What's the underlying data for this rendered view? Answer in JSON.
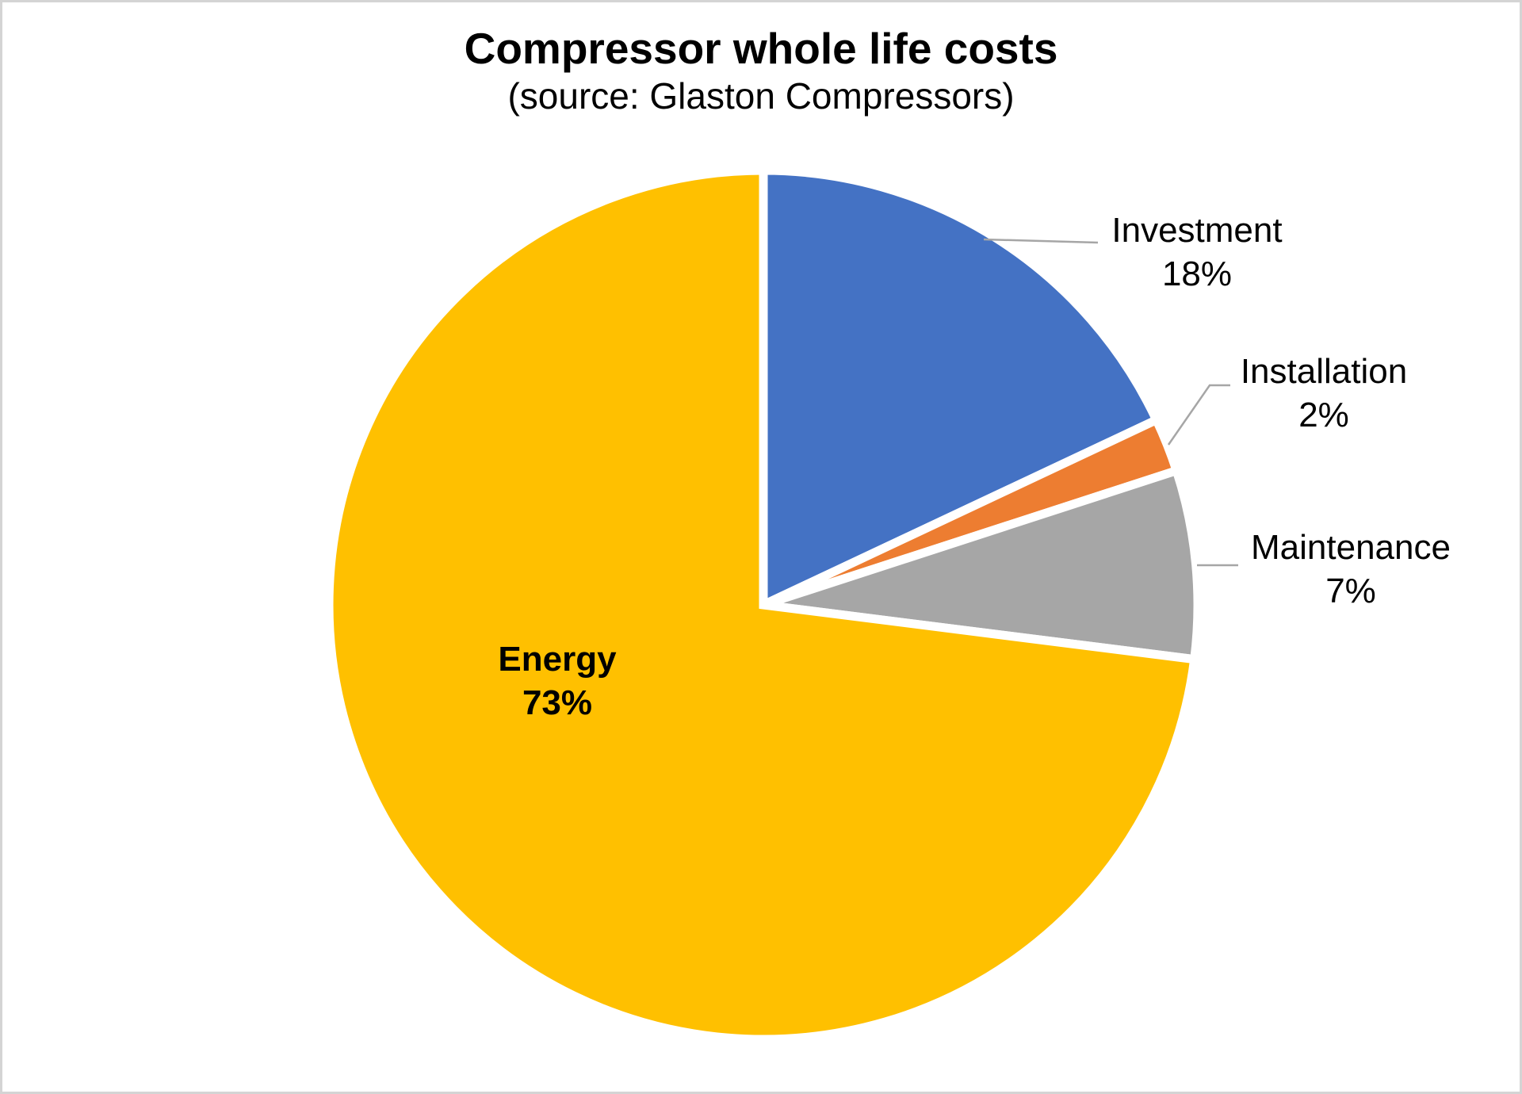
{
  "header": {
    "title": "Compressor whole life costs",
    "subtitle": "(source: Glaston Compressors)"
  },
  "chart_data": {
    "type": "pie",
    "title": "Compressor whole life costs",
    "subtitle": "(source: Glaston Compressors)",
    "start_angle_deg": 0,
    "direction": "clockwise",
    "slices": [
      {
        "label": "Investment",
        "value": 18,
        "pct_label": "18%",
        "color": "#4472C4",
        "label_placement": "outside-right"
      },
      {
        "label": "Installation",
        "value": 2,
        "pct_label": "2%",
        "color": "#ED7D31",
        "label_placement": "outside-right"
      },
      {
        "label": "Maintenance",
        "value": 7,
        "pct_label": "7%",
        "color": "#A6A6A6",
        "label_placement": "outside-right"
      },
      {
        "label": "Energy",
        "value": 73,
        "pct_label": "73%",
        "color": "#FFC000",
        "label_placement": "inside",
        "label_bold": true
      }
    ],
    "slice_border_color": "#FFFFFF",
    "leader_line_color": "#A6A6A6",
    "text_color": "#000000",
    "legend": "none"
  }
}
